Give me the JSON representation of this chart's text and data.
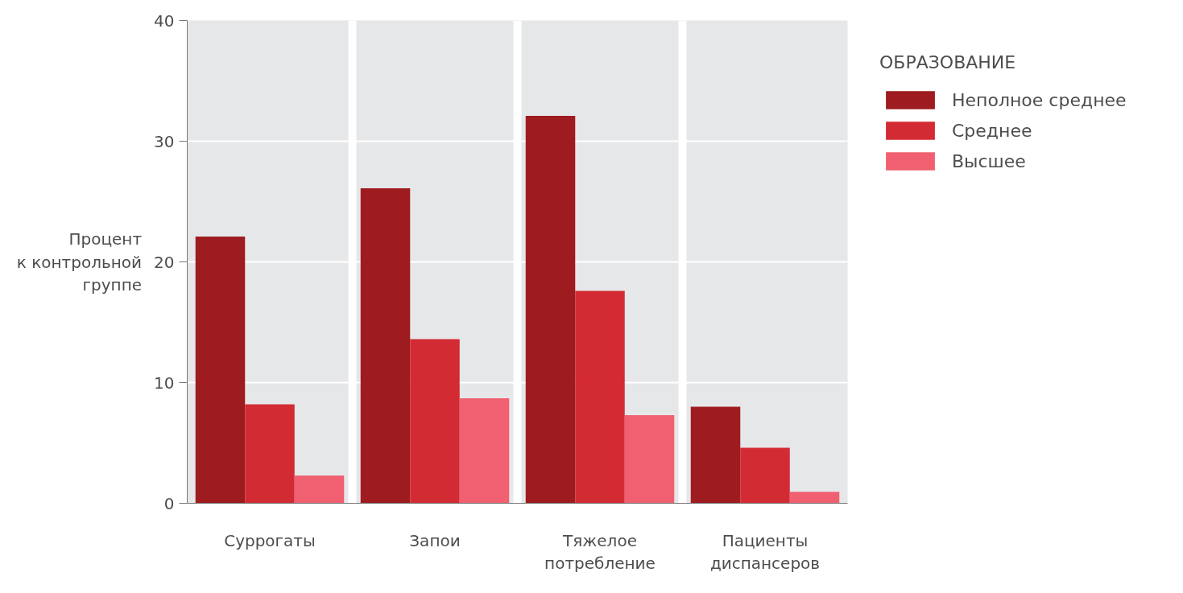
{
  "chart_data": {
    "type": "bar",
    "ylabel": "Процент\nк контрольной\nгруппе",
    "legend_title": "ОБРАЗОВАНИЕ",
    "categories": [
      "Суррогаты",
      "Запои",
      "Тяжелое\nпотребление",
      "Пациенты\nдиспансеров"
    ],
    "series": [
      {
        "name": "Неполное среднее",
        "color": "#9e1b20",
        "values": [
          22.1,
          26.1,
          32.1,
          8.0
        ]
      },
      {
        "name": "Среднее",
        "color": "#d32b33",
        "values": [
          8.2,
          13.6,
          17.6,
          4.6
        ]
      },
      {
        "name": "Высшее",
        "color": "#f06070",
        "values": [
          2.3,
          8.7,
          7.3,
          0.95
        ]
      }
    ],
    "ylim": [
      0,
      40
    ],
    "yticks": [
      0,
      10,
      20,
      30,
      40
    ],
    "grid": true,
    "legend": "top right"
  }
}
